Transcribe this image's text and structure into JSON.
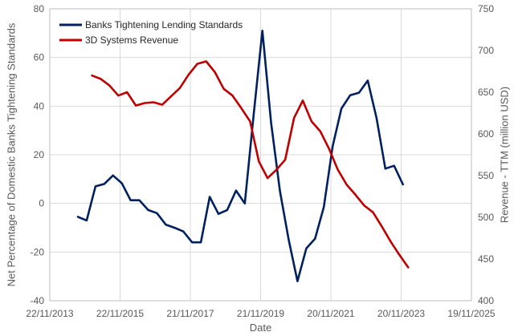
{
  "chart_data": {
    "type": "line",
    "xlabel": "Date",
    "ylabel_left": "Net Percentage of Domestic Banks Tightening Standards",
    "ylabel_right": "Revenue - TTM (million USD)",
    "x_ticks": [
      "22/11/2013",
      "22/11/2015",
      "21/11/2017",
      "21/11/2019",
      "20/11/2021",
      "20/11/2023",
      "19/11/2025"
    ],
    "x_range_years": [
      2013.9,
      2025.9
    ],
    "ylim_left": [
      -40,
      80
    ],
    "yticks_left": [
      -40,
      -20,
      0,
      20,
      40,
      60,
      80
    ],
    "ylim_right": [
      400,
      750
    ],
    "yticks_right": [
      400,
      450,
      500,
      550,
      600,
      650,
      700,
      750
    ],
    "legend": {
      "position": "top-left"
    },
    "colors": {
      "banks": "#002060",
      "revenue": "#C00000"
    },
    "series": [
      {
        "name": "Banks Tightening Lending Standards",
        "axis": "left",
        "x": [
          2014.7,
          2014.95,
          2015.2,
          2015.45,
          2015.7,
          2015.95,
          2016.2,
          2016.45,
          2016.7,
          2016.95,
          2017.2,
          2017.45,
          2017.7,
          2017.95,
          2018.2,
          2018.45,
          2018.7,
          2018.95,
          2019.2,
          2019.45,
          2019.7,
          2019.95,
          2020.2,
          2020.45,
          2020.7,
          2020.95,
          2021.2,
          2021.45,
          2021.7,
          2021.95,
          2022.2,
          2022.45,
          2022.7,
          2022.95,
          2023.2,
          2023.45,
          2023.7,
          2023.95
        ],
        "values": [
          -5.5,
          -7,
          7,
          8,
          11.5,
          8.3,
          1.3,
          1.3,
          -2.7,
          -4,
          -8.7,
          -10,
          -11.5,
          -16,
          -16,
          2.7,
          -4.3,
          -2.7,
          5.3,
          0,
          36,
          71,
          33,
          5,
          -15,
          -32,
          -18.5,
          -14.5,
          -1.5,
          23.5,
          39,
          44.5,
          45.5,
          50.5,
          35,
          14.3,
          15.5,
          7.8
        ]
      },
      {
        "name": "3D Systems Revenue",
        "axis": "right",
        "x": [
          2015.1,
          2015.35,
          2015.6,
          2015.85,
          2016.1,
          2016.35,
          2016.6,
          2016.85,
          2017.1,
          2017.35,
          2017.6,
          2017.85,
          2018.1,
          2018.35,
          2018.6,
          2018.85,
          2019.1,
          2019.35,
          2019.6,
          2019.85,
          2020.1,
          2020.35,
          2020.6,
          2020.85,
          2021.1,
          2021.35,
          2021.6,
          2021.85,
          2022.1,
          2022.35,
          2022.6,
          2022.85,
          2023.1,
          2023.35,
          2023.6,
          2023.85,
          2024.1
        ],
        "values": [
          670,
          666,
          658,
          646,
          650,
          634,
          637,
          638,
          635,
          645,
          655,
          671,
          684,
          687,
          674,
          654,
          646,
          631,
          615,
          567,
          547,
          557,
          569,
          619,
          640,
          615,
          603,
          582,
          557,
          539,
          527,
          514,
          506,
          489,
          471,
          455,
          440
        ]
      }
    ]
  }
}
